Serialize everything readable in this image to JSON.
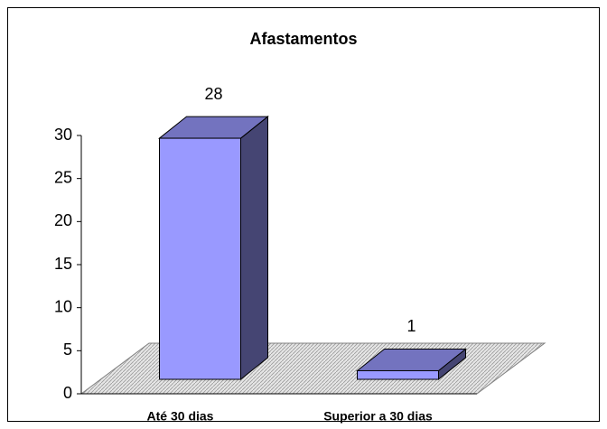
{
  "chart_data": {
    "type": "bar3d",
    "title": "Afastamentos",
    "categories": [
      "Até 30 dias",
      "Superior a 30 dias"
    ],
    "values": [
      28,
      1
    ],
    "color": "#9999ff",
    "ylim": [
      0,
      30
    ],
    "yticks": [
      0,
      5,
      10,
      15,
      20,
      25,
      30
    ]
  }
}
